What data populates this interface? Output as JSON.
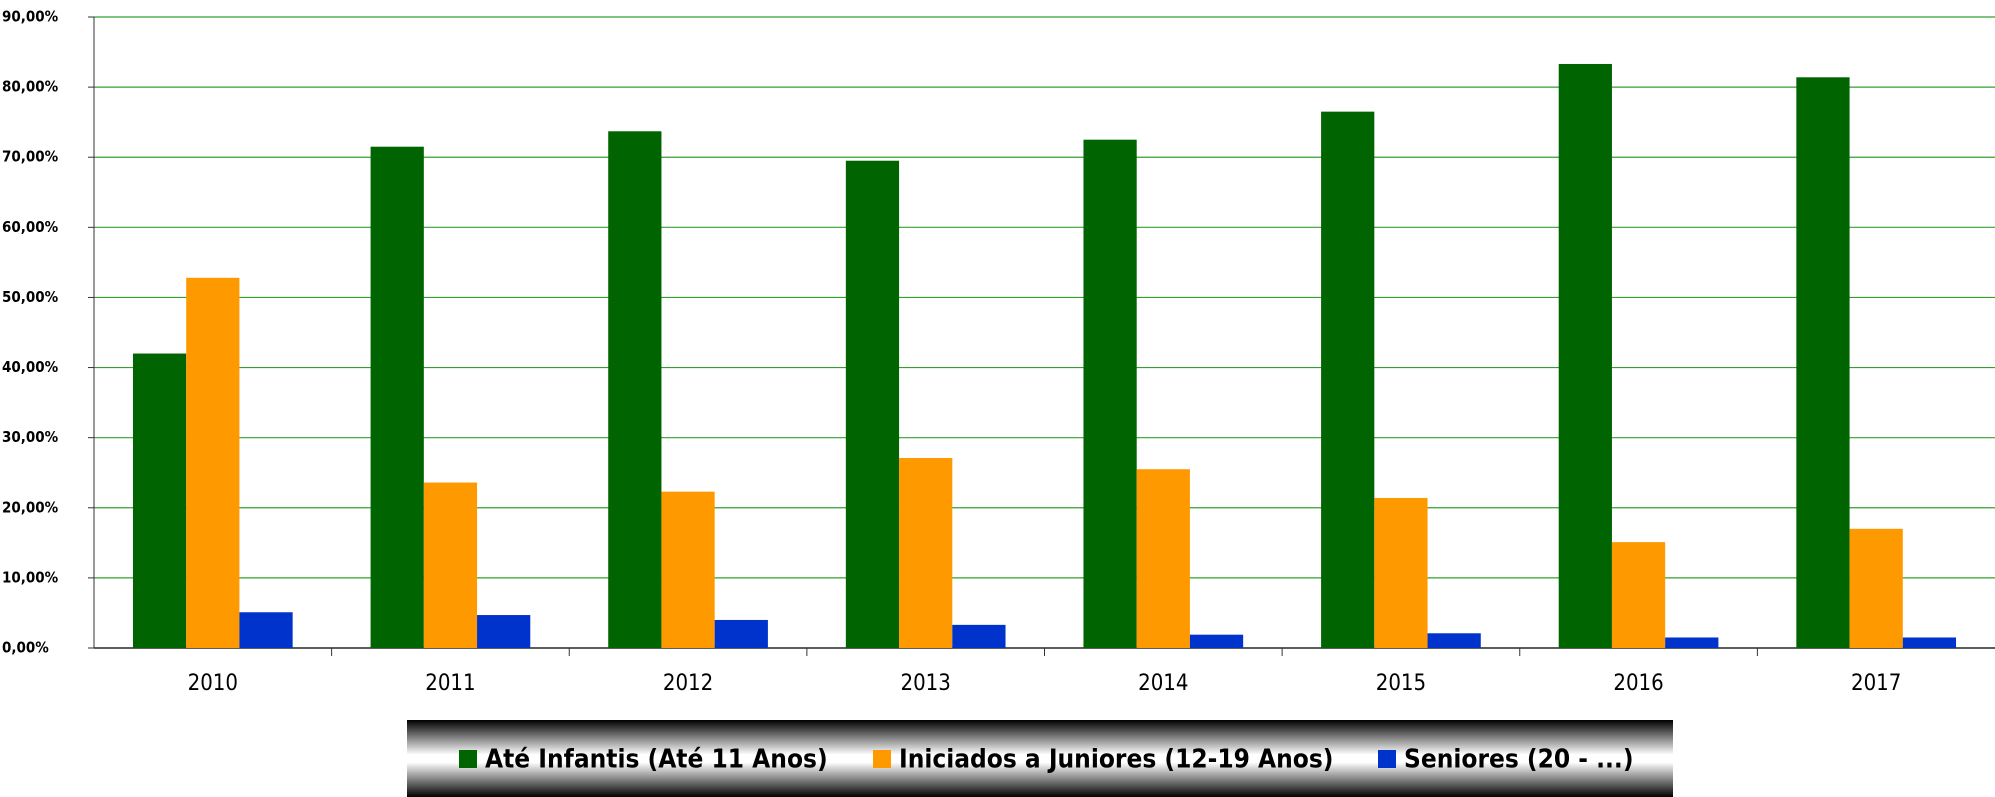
{
  "chart_data": {
    "type": "bar",
    "categories": [
      "2010",
      "2011",
      "2012",
      "2013",
      "2014",
      "2015",
      "2016",
      "2017"
    ],
    "series": [
      {
        "name": "Até Infantis (Até 11 Anos)",
        "color": "#006400",
        "values": [
          42.0,
          71.5,
          73.7,
          69.5,
          72.5,
          76.5,
          83.3,
          81.4
        ]
      },
      {
        "name": "Iniciados a Juniores (12-19 Anos)",
        "color": "#ff9900",
        "values": [
          52.8,
          23.6,
          22.3,
          27.1,
          25.5,
          21.4,
          15.1,
          17.0
        ]
      },
      {
        "name": "Seniores (20 - ...)",
        "color": "#0033cc",
        "values": [
          5.1,
          4.7,
          4.0,
          3.3,
          1.9,
          2.1,
          1.5,
          1.5
        ]
      }
    ],
    "ylim": [
      0,
      90
    ],
    "yticks": [
      {
        "value": 0,
        "label": "0,00%"
      },
      {
        "value": 10,
        "label": "10,00%"
      },
      {
        "value": 20,
        "label": "20,00%"
      },
      {
        "value": 30,
        "label": "30,00%"
      },
      {
        "value": 40,
        "label": "40,00%"
      },
      {
        "value": 50,
        "label": "50,00%"
      },
      {
        "value": 60,
        "label": "60,00%"
      },
      {
        "value": 70,
        "label": "70,00%"
      },
      {
        "value": 80,
        "label": "80,00%"
      },
      {
        "value": 90,
        "label": "90,00%"
      }
    ],
    "grid": true
  }
}
